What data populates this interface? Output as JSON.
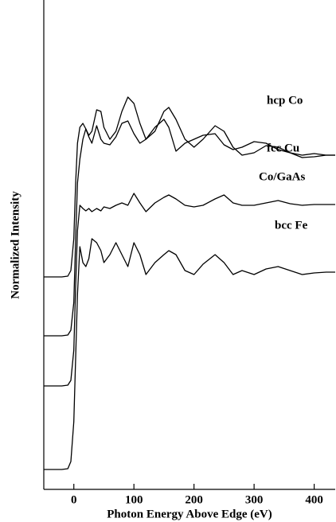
{
  "chart_data": {
    "type": "line",
    "xlabel": "Photon Energy Above Edge (eV)",
    "ylabel": "Normalized Intensity",
    "x": [
      -50,
      -20,
      -10,
      -5,
      0,
      3,
      6,
      10,
      15,
      20,
      25,
      30,
      38,
      45,
      50,
      60,
      70,
      80,
      90,
      100,
      110,
      120,
      135,
      150,
      158,
      170,
      185,
      200,
      215,
      235,
      250,
      265,
      280,
      300,
      320,
      340,
      360,
      380,
      400,
      420,
      435
    ],
    "series": [
      {
        "name": "hcp Co",
        "color": "#000000",
        "values": [
          267,
          267,
          268,
          275,
          315,
          385,
          435,
          455,
          460,
          453,
          445,
          450,
          477,
          475,
          455,
          440,
          450,
          475,
          493,
          485,
          460,
          440,
          450,
          475,
          480,
          465,
          440,
          430,
          440,
          457,
          450,
          430,
          420,
          423,
          432,
          430,
          423,
          417,
          418,
          420,
          420
        ]
      },
      {
        "name": "fcc Cu",
        "color": "#000000",
        "values": [
          193,
          193,
          194,
          200,
          235,
          315,
          385,
          415,
          440,
          453,
          443,
          435,
          457,
          440,
          435,
          433,
          443,
          460,
          463,
          447,
          435,
          440,
          455,
          465,
          455,
          425,
          435,
          440,
          445,
          447,
          433,
          427,
          430,
          437,
          435,
          427,
          423,
          420,
          422,
          420,
          420
        ]
      },
      {
        "name": "Co/GaAs",
        "color": "#000000",
        "values": [
          130,
          130,
          131,
          137,
          175,
          255,
          325,
          357,
          353,
          350,
          353,
          349,
          353,
          350,
          355,
          353,
          357,
          360,
          357,
          372,
          360,
          349,
          360,
          367,
          370,
          365,
          357,
          355,
          357,
          365,
          370,
          360,
          357,
          357,
          360,
          363,
          359,
          357,
          358,
          358,
          358
        ]
      },
      {
        "name": "bcc Fe",
        "color": "#000000",
        "values": [
          25,
          25,
          26,
          35,
          85,
          165,
          245,
          305,
          285,
          280,
          290,
          315,
          310,
          300,
          285,
          295,
          310,
          295,
          280,
          310,
          295,
          270,
          285,
          295,
          300,
          295,
          275,
          270,
          283,
          295,
          285,
          270,
          275,
          270,
          277,
          280,
          275,
          270,
          272,
          273,
          273
        ]
      }
    ],
    "xlim": [
      -50,
      435
    ],
    "xticks": [
      0,
      100,
      200,
      300,
      400
    ],
    "ylim": [
      0,
      615
    ]
  }
}
